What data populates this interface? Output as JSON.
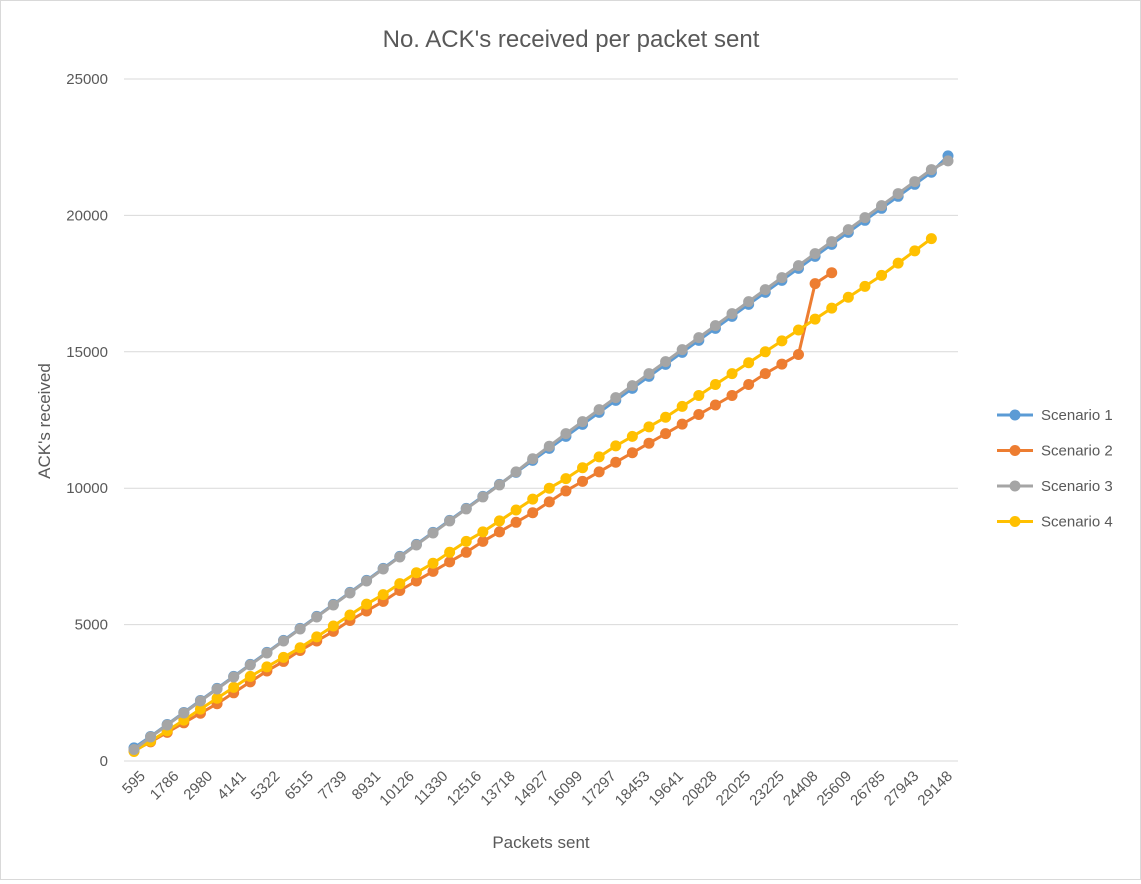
{
  "chart_data": {
    "type": "line",
    "title": "No. ACK's received per packet sent",
    "xlabel": "Packets sent",
    "ylabel": "ACK's received",
    "ylim": [
      0,
      25000
    ],
    "yticks": [
      0,
      5000,
      10000,
      15000,
      20000,
      25000
    ],
    "xticks": [
      595,
      1786,
      2980,
      4141,
      5322,
      6515,
      7739,
      8931,
      10126,
      11330,
      12516,
      13718,
      14927,
      16099,
      17297,
      18453,
      19641,
      20828,
      22025,
      23225,
      24408,
      25609,
      26785,
      27943,
      29148
    ],
    "grid": true,
    "legend_position": "right",
    "series": [
      {
        "name": "Scenario 1",
        "color": "#5b9bd5",
        "values": [
          480,
          900,
          1340,
          1780,
          2220,
          2660,
          3100,
          3540,
          3980,
          4420,
          4860,
          5300,
          5740,
          6180,
          6620,
          7060,
          7500,
          7940,
          8380,
          8820,
          9260,
          9700,
          10140,
          10580,
          11020,
          11460,
          11900,
          12340,
          12780,
          13220,
          13660,
          14100,
          14540,
          14980,
          15420,
          15860,
          16300,
          16740,
          17180,
          17620,
          18060,
          18500,
          18940,
          19380,
          19820,
          20260,
          20700,
          21140,
          21580,
          22180
        ]
      },
      {
        "name": "Scenario 2",
        "color": "#ed7d31",
        "values": [
          380,
          700,
          1050,
          1400,
          1750,
          2100,
          2500,
          2900,
          3300,
          3650,
          4050,
          4400,
          4750,
          5150,
          5500,
          5850,
          6250,
          6600,
          6950,
          7300,
          7650,
          8050,
          8400,
          8750,
          9100,
          9500,
          9900,
          10250,
          10600,
          10950,
          11300,
          11650,
          12000,
          12350,
          12700,
          13050,
          13400,
          13800,
          14200,
          14550,
          14900,
          17500,
          17900
        ]
      },
      {
        "name": "Scenario 3",
        "color": "#a5a5a5",
        "values": [
          420,
          880,
          1320,
          1760,
          2200,
          2640,
          3080,
          3520,
          3960,
          4400,
          4840,
          5280,
          5720,
          6160,
          6600,
          7040,
          7480,
          7920,
          8360,
          8800,
          9240,
          9680,
          10120,
          10600,
          11080,
          11540,
          12000,
          12440,
          12880,
          13320,
          13760,
          14200,
          14640,
          15080,
          15520,
          15960,
          16400,
          16840,
          17280,
          17720,
          18160,
          18600,
          19040,
          19480,
          19920,
          20360,
          20800,
          21240,
          21680,
          22000
        ]
      },
      {
        "name": "Scenario 4",
        "color": "#ffc000",
        "values": [
          350,
          730,
          1110,
          1500,
          1900,
          2300,
          2700,
          3100,
          3450,
          3800,
          4150,
          4550,
          4950,
          5350,
          5750,
          6100,
          6500,
          6900,
          7250,
          7650,
          8050,
          8400,
          8800,
          9200,
          9600,
          10000,
          10350,
          10750,
          11150,
          11550,
          11900,
          12250,
          12600,
          13000,
          13400,
          13800,
          14200,
          14600,
          15000,
          15400,
          15800,
          16200,
          16600,
          17000,
          17400,
          17800,
          18250,
          18700,
          19150
        ]
      }
    ]
  }
}
